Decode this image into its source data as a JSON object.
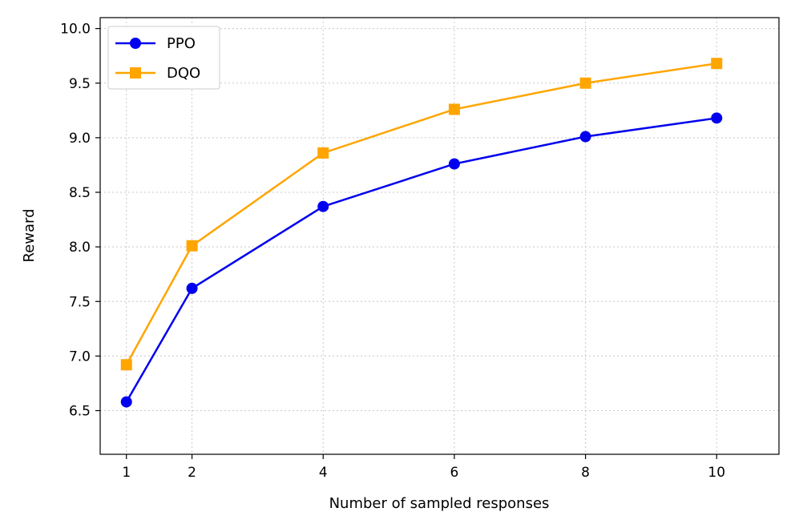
{
  "chart_data": {
    "type": "line",
    "title": "",
    "xlabel": "Number of sampled responses",
    "ylabel": "Reward",
    "x": [
      1,
      2,
      4,
      6,
      8,
      10
    ],
    "xticks": [
      "1",
      "2",
      "4",
      "6",
      "8",
      "10"
    ],
    "xlim": [
      0.6,
      10.95
    ],
    "ylim": [
      6.1,
      10.1
    ],
    "yticks": [
      "6.5",
      "7.0",
      "7.5",
      "8.0",
      "8.5",
      "9.0",
      "9.5",
      "10.0"
    ],
    "grid": true,
    "legend_position": "top-left",
    "series": [
      {
        "name": "PPO",
        "color": "#0000ee",
        "marker": "circle",
        "values": [
          6.58,
          7.62,
          8.37,
          8.76,
          9.01,
          9.18
        ]
      },
      {
        "name": "DQO",
        "color": "#ffa500",
        "marker": "square",
        "values": [
          6.92,
          8.01,
          8.86,
          9.26,
          9.5,
          9.68
        ]
      }
    ]
  }
}
